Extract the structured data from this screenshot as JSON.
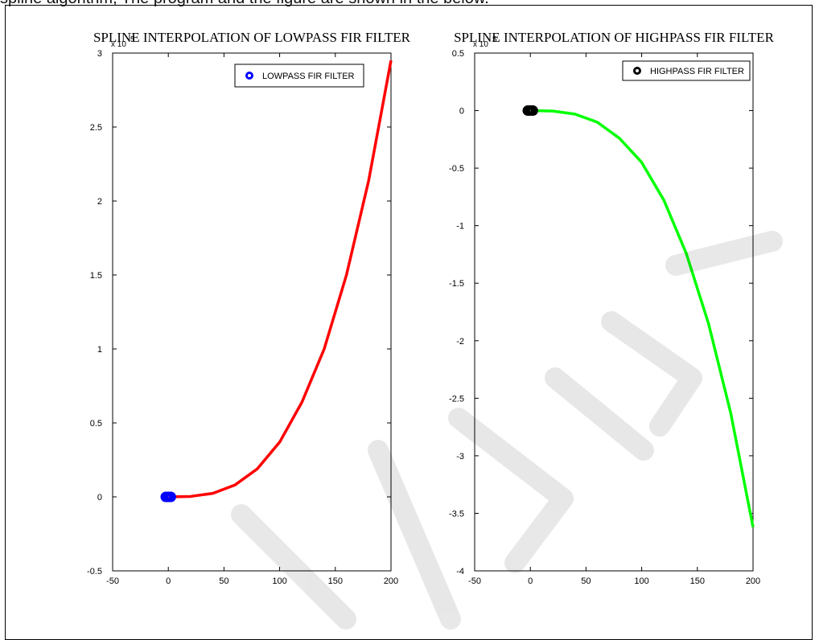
{
  "page": {
    "caption": "spline algorithm, The program and the figure are shown in the below."
  },
  "chart_data": [
    {
      "type": "line",
      "title": "SPLINE INTERPOLATION OF LOWPASS FIR FILTER",
      "xlabel": "",
      "ylabel": "",
      "y_exponent_label": "x 10",
      "y_exponent_power": "5",
      "xlim": [
        -50,
        200
      ],
      "ylim": [
        -0.5,
        3
      ],
      "xticks": [
        -50,
        0,
        50,
        100,
        150,
        200
      ],
      "xtick_labels": [
        "-50",
        "0",
        "50",
        "100",
        "150",
        "200"
      ],
      "yticks": [
        -0.5,
        0,
        0.5,
        1,
        1.5,
        2,
        2.5,
        3
      ],
      "ytick_labels": [
        "-0.5",
        "0",
        "0.5",
        "1",
        "1.5",
        "2",
        "2.5",
        "3"
      ],
      "grid": false,
      "legend_position": "top-right",
      "series": [
        {
          "name": "LOWPASS FIR FILTER",
          "kind": "markers",
          "marker": "o",
          "color": "#0000ff",
          "x": [
            0,
            0,
            0,
            0,
            0
          ],
          "y": [
            0,
            0,
            0,
            0,
            0
          ]
        },
        {
          "kind": "line",
          "color": "#ff0000",
          "x": [
            0,
            20,
            40,
            60,
            80,
            100,
            120,
            140,
            160,
            180,
            200
          ],
          "y": [
            0,
            0.003,
            0.024,
            0.081,
            0.19,
            0.37,
            0.64,
            1.0,
            1.5,
            2.14,
            2.95
          ]
        }
      ]
    },
    {
      "type": "line",
      "title": "SPLINE INTERPOLATION OF HIGHPASS FIR FILTER",
      "xlabel": "",
      "ylabel": "",
      "y_exponent_label": "x 10",
      "y_exponent_power": "5",
      "xlim": [
        -50,
        200
      ],
      "ylim": [
        -4,
        0.5
      ],
      "xticks": [
        -50,
        0,
        50,
        100,
        150,
        200
      ],
      "xtick_labels": [
        "-50",
        "0",
        "50",
        "100",
        "150",
        "200"
      ],
      "yticks": [
        -4,
        -3.5,
        -3,
        -2.5,
        -2,
        -1.5,
        -1,
        -0.5,
        0,
        0.5
      ],
      "ytick_labels": [
        "-4",
        "-3.5",
        "-3",
        "-2.5",
        "-2",
        "-1.5",
        "-1",
        "-0.5",
        "0",
        "0.5"
      ],
      "grid": false,
      "legend_position": "top-right",
      "series": [
        {
          "name": "HIGHPASS FIR FILTER",
          "kind": "markers",
          "marker": "o",
          "color": "#000000",
          "x": [
            0,
            0,
            0,
            0,
            0
          ],
          "y": [
            0,
            0,
            0,
            0,
            0
          ]
        },
        {
          "kind": "line",
          "color": "#00ff00",
          "x": [
            0,
            20,
            40,
            60,
            80,
            100,
            120,
            140,
            160,
            180,
            200
          ],
          "y": [
            0,
            -0.004,
            -0.03,
            -0.1,
            -0.24,
            -0.45,
            -0.78,
            -1.24,
            -1.85,
            -2.63,
            -3.62
          ]
        }
      ]
    }
  ]
}
